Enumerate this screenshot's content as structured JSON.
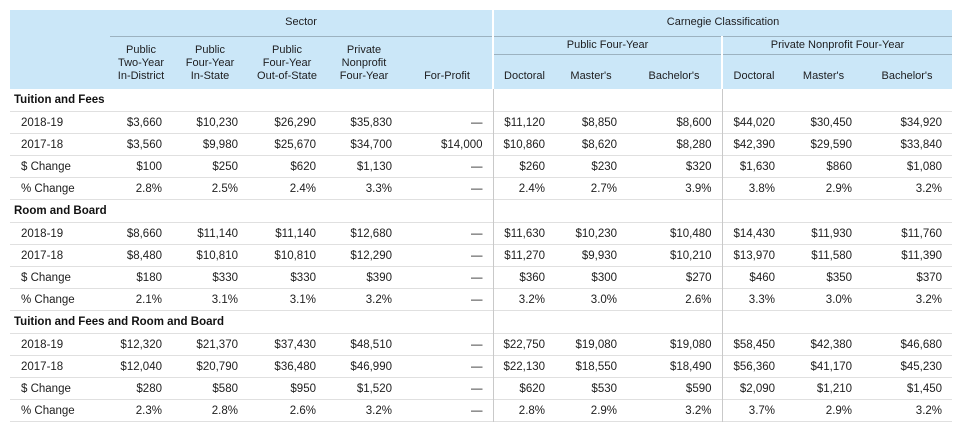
{
  "chart_data": {
    "type": "table",
    "column_group_titles": {
      "sector": "Sector",
      "carnegie": "Carnegie Classification"
    },
    "carnegie_subgroups": {
      "public": "Public Four-Year",
      "private": "Private Nonprofit Four-Year"
    },
    "sector_columns": [
      "Public\nTwo-Year\nIn-District",
      "Public\nFour-Year\nIn-State",
      "Public\nFour-Year\nOut-of-State",
      "Private\nNonprofit\nFour-Year",
      "For-Profit"
    ],
    "carnegie_columns": [
      "Doctoral",
      "Master's",
      "Bachelor's",
      "Doctoral",
      "Master's",
      "Bachelor's"
    ],
    "sections": [
      {
        "title": "Tuition and Fees",
        "rows": [
          {
            "label": "2018-19",
            "values": [
              "$3,660",
              "$10,230",
              "$26,290",
              "$35,830",
              "—",
              "$11,120",
              "$8,850",
              "$8,600",
              "$44,020",
              "$30,450",
              "$34,920"
            ]
          },
          {
            "label": "2017-18",
            "values": [
              "$3,560",
              "$9,980",
              "$25,670",
              "$34,700",
              "$14,000",
              "$10,860",
              "$8,620",
              "$8,280",
              "$42,390",
              "$29,590",
              "$33,840"
            ]
          },
          {
            "label": "$ Change",
            "values": [
              "$100",
              "$250",
              "$620",
              "$1,130",
              "—",
              "$260",
              "$230",
              "$320",
              "$1,630",
              "$860",
              "$1,080"
            ]
          },
          {
            "label": "% Change",
            "values": [
              "2.8%",
              "2.5%",
              "2.4%",
              "3.3%",
              "—",
              "2.4%",
              "2.7%",
              "3.9%",
              "3.8%",
              "2.9%",
              "3.2%"
            ]
          }
        ]
      },
      {
        "title": "Room and Board",
        "rows": [
          {
            "label": "2018-19",
            "values": [
              "$8,660",
              "$11,140",
              "$11,140",
              "$12,680",
              "—",
              "$11,630",
              "$10,230",
              "$10,480",
              "$14,430",
              "$11,930",
              "$11,760"
            ]
          },
          {
            "label": "2017-18",
            "values": [
              "$8,480",
              "$10,810",
              "$10,810",
              "$12,290",
              "—",
              "$11,270",
              "$9,930",
              "$10,210",
              "$13,970",
              "$11,580",
              "$11,390"
            ]
          },
          {
            "label": "$ Change",
            "values": [
              "$180",
              "$330",
              "$330",
              "$390",
              "—",
              "$360",
              "$300",
              "$270",
              "$460",
              "$350",
              "$370"
            ]
          },
          {
            "label": "% Change",
            "values": [
              "2.1%",
              "3.1%",
              "3.1%",
              "3.2%",
              "—",
              "3.2%",
              "3.0%",
              "2.6%",
              "3.3%",
              "3.0%",
              "3.2%"
            ]
          }
        ]
      },
      {
        "title": "Tuition and Fees and Room and Board",
        "rows": [
          {
            "label": "2018-19",
            "values": [
              "$12,320",
              "$21,370",
              "$37,430",
              "$48,510",
              "—",
              "$22,750",
              "$19,080",
              "$19,080",
              "$58,450",
              "$42,380",
              "$46,680"
            ]
          },
          {
            "label": "2017-18",
            "values": [
              "$12,040",
              "$20,790",
              "$36,480",
              "$46,990",
              "—",
              "$22,130",
              "$18,550",
              "$18,490",
              "$56,360",
              "$41,170",
              "$45,230"
            ]
          },
          {
            "label": "$ Change",
            "values": [
              "$280",
              "$580",
              "$950",
              "$1,520",
              "—",
              "$620",
              "$530",
              "$590",
              "$2,090",
              "$1,210",
              "$1,450"
            ]
          },
          {
            "label": "% Change",
            "values": [
              "2.3%",
              "2.8%",
              "2.6%",
              "3.2%",
              "—",
              "2.8%",
              "2.9%",
              "3.2%",
              "3.7%",
              "2.9%",
              "3.2%"
            ]
          }
        ]
      }
    ],
    "layout_hints": {
      "header_bg": "#cbe7f8",
      "header_rule": "#9cb2c0",
      "row_rule": "#e0e0e0",
      "group_divider": "#c9c9c9",
      "text_color": "#202020"
    }
  }
}
